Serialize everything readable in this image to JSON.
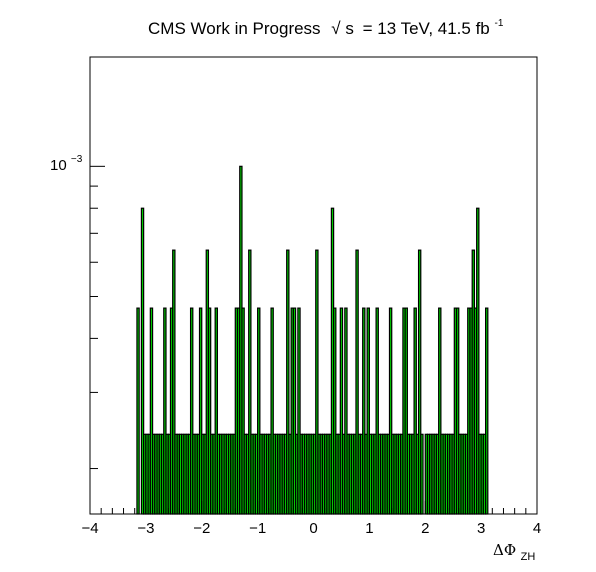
{
  "chart_data": {
    "type": "bar",
    "title": {
      "prefix": "CMS Work in Progress",
      "sqrt_symbol": "√",
      "sqrt_var": "s",
      "suffix": "= 13 TeV, 41.5 fb",
      "suffix_exponent": "-1"
    },
    "xlabel": {
      "symbol": "ΔΦ",
      "subscript": "ZH"
    },
    "ylabel": "",
    "xlim": [
      -4,
      4
    ],
    "ylim": [
      0.000157,
      0.00179
    ],
    "y_scale": "log",
    "x_ticks": [
      "−4",
      "−3",
      "−2",
      "−1",
      "0",
      "1",
      "2",
      "3",
      "4"
    ],
    "y_tick_label": {
      "base": "10",
      "exponent": "−3"
    },
    "grid": false,
    "bar_color": "#00cc00",
    "edge_color": "#000000",
    "bin_width": 0.04,
    "bins": [
      [
        -3.14,
        0.00047
      ],
      [
        -3.06,
        0.0008
      ],
      [
        -3.02,
        0.00024
      ],
      [
        -2.98,
        0.00024
      ],
      [
        -2.94,
        0.00024
      ],
      [
        -2.9,
        0.00047
      ],
      [
        -2.86,
        0.00024
      ],
      [
        -2.82,
        0.00024
      ],
      [
        -2.78,
        0.00024
      ],
      [
        -2.74,
        0.00024
      ],
      [
        -2.7,
        0.00024
      ],
      [
        -2.66,
        0.00047
      ],
      [
        -2.62,
        0.00024
      ],
      [
        -2.58,
        0.00024
      ],
      [
        -2.54,
        0.00047
      ],
      [
        -2.5,
        0.00064
      ],
      [
        -2.46,
        0.00024
      ],
      [
        -2.42,
        0.00024
      ],
      [
        -2.38,
        0.00024
      ],
      [
        -2.34,
        0.00024
      ],
      [
        -2.3,
        0.00024
      ],
      [
        -2.26,
        0.00024
      ],
      [
        -2.22,
        0.00024
      ],
      [
        -2.18,
        0.00047
      ],
      [
        -2.14,
        0.00024
      ],
      [
        -2.1,
        0.00024
      ],
      [
        -2.06,
        0.00024
      ],
      [
        -2.02,
        0.00047
      ],
      [
        -1.98,
        0.00024
      ],
      [
        -1.94,
        0.00024
      ],
      [
        -1.9,
        0.00064
      ],
      [
        -1.86,
        0.00047
      ],
      [
        -1.82,
        0.00024
      ],
      [
        -1.78,
        0.00024
      ],
      [
        -1.74,
        0.00047
      ],
      [
        -1.7,
        0.00024
      ],
      [
        -1.66,
        0.00024
      ],
      [
        -1.62,
        0.00024
      ],
      [
        -1.58,
        0.00024
      ],
      [
        -1.54,
        0.00024
      ],
      [
        -1.5,
        0.00024
      ],
      [
        -1.46,
        0.00024
      ],
      [
        -1.42,
        0.00024
      ],
      [
        -1.38,
        0.00047
      ],
      [
        -1.34,
        0.00047
      ],
      [
        -1.3,
        0.001
      ],
      [
        -1.26,
        0.00047
      ],
      [
        -1.22,
        0.00024
      ],
      [
        -1.18,
        0.00024
      ],
      [
        -1.14,
        0.00064
      ],
      [
        -1.1,
        0.00024
      ],
      [
        -1.06,
        0.00024
      ],
      [
        -1.02,
        0.00024
      ],
      [
        -0.98,
        0.00047
      ],
      [
        -0.94,
        0.00024
      ],
      [
        -0.9,
        0.00024
      ],
      [
        -0.86,
        0.00024
      ],
      [
        -0.82,
        0.00024
      ],
      [
        -0.78,
        0.00024
      ],
      [
        -0.74,
        0.00047
      ],
      [
        -0.7,
        0.00024
      ],
      [
        -0.66,
        0.00024
      ],
      [
        -0.62,
        0.00024
      ],
      [
        -0.58,
        0.00024
      ],
      [
        -0.54,
        0.00024
      ],
      [
        -0.5,
        0.00024
      ],
      [
        -0.46,
        0.00064
      ],
      [
        -0.42,
        0.00024
      ],
      [
        -0.38,
        0.00047
      ],
      [
        -0.34,
        0.00047
      ],
      [
        -0.3,
        0.00024
      ],
      [
        -0.26,
        0.00047
      ],
      [
        -0.22,
        0.00024
      ],
      [
        -0.18,
        0.00024
      ],
      [
        -0.14,
        0.00024
      ],
      [
        -0.1,
        0.00024
      ],
      [
        -0.06,
        0.00024
      ],
      [
        -0.02,
        0.00024
      ],
      [
        0.02,
        0.00024
      ],
      [
        0.06,
        0.00064
      ],
      [
        0.1,
        0.00024
      ],
      [
        0.14,
        0.00024
      ],
      [
        0.18,
        0.00024
      ],
      [
        0.22,
        0.00024
      ],
      [
        0.26,
        0.00024
      ],
      [
        0.3,
        0.00024
      ],
      [
        0.34,
        0.0008
      ],
      [
        0.38,
        0.00047
      ],
      [
        0.42,
        0.00024
      ],
      [
        0.46,
        0.00024
      ],
      [
        0.5,
        0.00047
      ],
      [
        0.54,
        0.00024
      ],
      [
        0.58,
        0.00047
      ],
      [
        0.62,
        0.00024
      ],
      [
        0.66,
        0.00024
      ],
      [
        0.7,
        0.00024
      ],
      [
        0.74,
        0.00024
      ],
      [
        0.78,
        0.00064
      ],
      [
        0.82,
        0.00024
      ],
      [
        0.86,
        0.00024
      ],
      [
        0.9,
        0.00047
      ],
      [
        0.94,
        0.00024
      ],
      [
        0.98,
        0.00047
      ],
      [
        1.02,
        0.00024
      ],
      [
        1.06,
        0.00024
      ],
      [
        1.1,
        0.00024
      ],
      [
        1.14,
        0.00047
      ],
      [
        1.18,
        0.00024
      ],
      [
        1.22,
        0.00024
      ],
      [
        1.26,
        0.00024
      ],
      [
        1.3,
        0.00024
      ],
      [
        1.34,
        0.00024
      ],
      [
        1.38,
        0.00047
      ],
      [
        1.42,
        0.00024
      ],
      [
        1.46,
        0.00024
      ],
      [
        1.5,
        0.00024
      ],
      [
        1.54,
        0.00024
      ],
      [
        1.58,
        0.00024
      ],
      [
        1.62,
        0.00047
      ],
      [
        1.66,
        0.00047
      ],
      [
        1.7,
        0.00024
      ],
      [
        1.74,
        0.00024
      ],
      [
        1.78,
        0.00024
      ],
      [
        1.82,
        0.00047
      ],
      [
        1.86,
        0.00024
      ],
      [
        1.9,
        0.00064
      ],
      [
        1.94,
        0.00024
      ],
      [
        2.02,
        0.00024
      ],
      [
        2.06,
        0.00024
      ],
      [
        2.1,
        0.00024
      ],
      [
        2.14,
        0.00024
      ],
      [
        2.18,
        0.00024
      ],
      [
        2.22,
        0.00024
      ],
      [
        2.26,
        0.00047
      ],
      [
        2.3,
        0.00024
      ],
      [
        2.34,
        0.00024
      ],
      [
        2.38,
        0.00024
      ],
      [
        2.42,
        0.00024
      ],
      [
        2.46,
        0.00024
      ],
      [
        2.5,
        0.00024
      ],
      [
        2.54,
        0.00047
      ],
      [
        2.58,
        0.00047
      ],
      [
        2.62,
        0.00024
      ],
      [
        2.66,
        0.00024
      ],
      [
        2.7,
        0.00024
      ],
      [
        2.74,
        0.00024
      ],
      [
        2.78,
        0.00047
      ],
      [
        2.82,
        0.00047
      ],
      [
        2.86,
        0.00064
      ],
      [
        2.9,
        0.00047
      ],
      [
        2.94,
        0.0008
      ],
      [
        2.98,
        0.00024
      ],
      [
        3.02,
        0.00024
      ],
      [
        3.06,
        0.00024
      ],
      [
        3.1,
        0.00047
      ]
    ]
  }
}
